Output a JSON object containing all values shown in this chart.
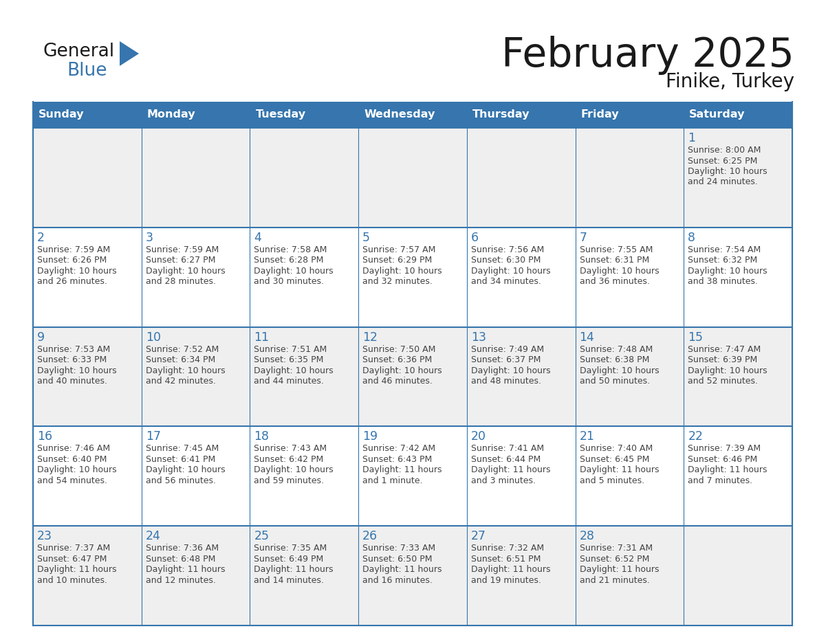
{
  "title": "February 2025",
  "subtitle": "Finike, Turkey",
  "days_of_week": [
    "Sunday",
    "Monday",
    "Tuesday",
    "Wednesday",
    "Thursday",
    "Friday",
    "Saturday"
  ],
  "header_bg": "#3675AD",
  "header_text": "#FFFFFF",
  "cell_bg_white": "#FFFFFF",
  "cell_bg_gray": "#EFEFEF",
  "border_color": "#3675AD",
  "day_num_color": "#3675AD",
  "text_color": "#444444",
  "logo_general_color": "#1a1a1a",
  "logo_blue_color": "#3675AD",
  "logo_triangle_color": "#3675AD",
  "title_color": "#1a1a1a",
  "calendar_data": [
    [
      null,
      null,
      null,
      null,
      null,
      null,
      {
        "day": 1,
        "sunrise": "8:00 AM",
        "sunset": "6:25 PM",
        "daylight": "10 hours\nand 24 minutes."
      }
    ],
    [
      {
        "day": 2,
        "sunrise": "7:59 AM",
        "sunset": "6:26 PM",
        "daylight": "10 hours\nand 26 minutes."
      },
      {
        "day": 3,
        "sunrise": "7:59 AM",
        "sunset": "6:27 PM",
        "daylight": "10 hours\nand 28 minutes."
      },
      {
        "day": 4,
        "sunrise": "7:58 AM",
        "sunset": "6:28 PM",
        "daylight": "10 hours\nand 30 minutes."
      },
      {
        "day": 5,
        "sunrise": "7:57 AM",
        "sunset": "6:29 PM",
        "daylight": "10 hours\nand 32 minutes."
      },
      {
        "day": 6,
        "sunrise": "7:56 AM",
        "sunset": "6:30 PM",
        "daylight": "10 hours\nand 34 minutes."
      },
      {
        "day": 7,
        "sunrise": "7:55 AM",
        "sunset": "6:31 PM",
        "daylight": "10 hours\nand 36 minutes."
      },
      {
        "day": 8,
        "sunrise": "7:54 AM",
        "sunset": "6:32 PM",
        "daylight": "10 hours\nand 38 minutes."
      }
    ],
    [
      {
        "day": 9,
        "sunrise": "7:53 AM",
        "sunset": "6:33 PM",
        "daylight": "10 hours\nand 40 minutes."
      },
      {
        "day": 10,
        "sunrise": "7:52 AM",
        "sunset": "6:34 PM",
        "daylight": "10 hours\nand 42 minutes."
      },
      {
        "day": 11,
        "sunrise": "7:51 AM",
        "sunset": "6:35 PM",
        "daylight": "10 hours\nand 44 minutes."
      },
      {
        "day": 12,
        "sunrise": "7:50 AM",
        "sunset": "6:36 PM",
        "daylight": "10 hours\nand 46 minutes."
      },
      {
        "day": 13,
        "sunrise": "7:49 AM",
        "sunset": "6:37 PM",
        "daylight": "10 hours\nand 48 minutes."
      },
      {
        "day": 14,
        "sunrise": "7:48 AM",
        "sunset": "6:38 PM",
        "daylight": "10 hours\nand 50 minutes."
      },
      {
        "day": 15,
        "sunrise": "7:47 AM",
        "sunset": "6:39 PM",
        "daylight": "10 hours\nand 52 minutes."
      }
    ],
    [
      {
        "day": 16,
        "sunrise": "7:46 AM",
        "sunset": "6:40 PM",
        "daylight": "10 hours\nand 54 minutes."
      },
      {
        "day": 17,
        "sunrise": "7:45 AM",
        "sunset": "6:41 PM",
        "daylight": "10 hours\nand 56 minutes."
      },
      {
        "day": 18,
        "sunrise": "7:43 AM",
        "sunset": "6:42 PM",
        "daylight": "10 hours\nand 59 minutes."
      },
      {
        "day": 19,
        "sunrise": "7:42 AM",
        "sunset": "6:43 PM",
        "daylight": "11 hours\nand 1 minute."
      },
      {
        "day": 20,
        "sunrise": "7:41 AM",
        "sunset": "6:44 PM",
        "daylight": "11 hours\nand 3 minutes."
      },
      {
        "day": 21,
        "sunrise": "7:40 AM",
        "sunset": "6:45 PM",
        "daylight": "11 hours\nand 5 minutes."
      },
      {
        "day": 22,
        "sunrise": "7:39 AM",
        "sunset": "6:46 PM",
        "daylight": "11 hours\nand 7 minutes."
      }
    ],
    [
      {
        "day": 23,
        "sunrise": "7:37 AM",
        "sunset": "6:47 PM",
        "daylight": "11 hours\nand 10 minutes."
      },
      {
        "day": 24,
        "sunrise": "7:36 AM",
        "sunset": "6:48 PM",
        "daylight": "11 hours\nand 12 minutes."
      },
      {
        "day": 25,
        "sunrise": "7:35 AM",
        "sunset": "6:49 PM",
        "daylight": "11 hours\nand 14 minutes."
      },
      {
        "day": 26,
        "sunrise": "7:33 AM",
        "sunset": "6:50 PM",
        "daylight": "11 hours\nand 16 minutes."
      },
      {
        "day": 27,
        "sunrise": "7:32 AM",
        "sunset": "6:51 PM",
        "daylight": "11 hours\nand 19 minutes."
      },
      {
        "day": 28,
        "sunrise": "7:31 AM",
        "sunset": "6:52 PM",
        "daylight": "11 hours\nand 21 minutes."
      },
      null
    ]
  ]
}
